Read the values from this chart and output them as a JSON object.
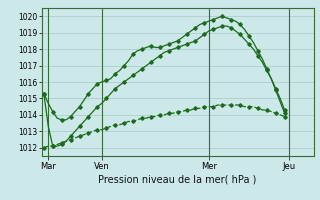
{
  "xlabel": "Pression niveau de la mer( hPa )",
  "bg_color": "#cce8e8",
  "plot_bg_color": "#cce8e8",
  "grid_color": "#aac8c8",
  "line_color": "#1a6b1a",
  "ylim": [
    1011.5,
    1020.5
  ],
  "xlim": [
    -0.5,
    60.5
  ],
  "yticks": [
    1012,
    1013,
    1014,
    1015,
    1016,
    1017,
    1018,
    1019,
    1020
  ],
  "xtick_labels": [
    "Mar",
    "Ven",
    "Mer",
    "Jeu"
  ],
  "xtick_positions": [
    1,
    13,
    37,
    55
  ],
  "vline_positions": [
    1,
    13,
    37,
    55
  ],
  "series1": [
    1015.3,
    1014.7,
    1014.2,
    1013.8,
    1013.7,
    1013.7,
    1013.9,
    1014.2,
    1014.5,
    1014.9,
    1015.3,
    1015.6,
    1015.9,
    1016.0,
    1016.1,
    1016.2,
    1016.5,
    1016.7,
    1017.0,
    1017.3,
    1017.7,
    1017.9,
    1018.0,
    1018.1,
    1018.2,
    1018.1,
    1018.1,
    1018.2,
    1018.3,
    1018.4,
    1018.5,
    1018.7,
    1018.9,
    1019.1,
    1019.3,
    1019.5,
    1019.6,
    1019.7,
    1019.8,
    1019.9,
    1020.0,
    1019.9,
    1019.8,
    1019.7,
    1019.5,
    1019.2,
    1018.8,
    1018.4,
    1017.9,
    1017.4,
    1016.8,
    1016.2,
    1015.5,
    1014.8,
    1014.1
  ],
  "series2": [
    1015.3,
    1013.3,
    1012.1,
    1012.1,
    1012.2,
    1012.4,
    1012.7,
    1013.0,
    1013.3,
    1013.6,
    1013.9,
    1014.2,
    1014.5,
    1014.7,
    1015.0,
    1015.3,
    1015.6,
    1015.8,
    1016.0,
    1016.2,
    1016.4,
    1016.6,
    1016.8,
    1017.0,
    1017.2,
    1017.4,
    1017.6,
    1017.8,
    1017.9,
    1018.0,
    1018.1,
    1018.2,
    1018.3,
    1018.4,
    1018.5,
    1018.7,
    1018.9,
    1019.1,
    1019.2,
    1019.3,
    1019.4,
    1019.4,
    1019.3,
    1019.1,
    1018.9,
    1018.6,
    1018.3,
    1018.0,
    1017.6,
    1017.2,
    1016.7,
    1016.2,
    1015.6,
    1015.0,
    1014.3
  ],
  "series3": [
    1012.0,
    1012.1,
    1012.1,
    1012.2,
    1012.3,
    1012.4,
    1012.5,
    1012.6,
    1012.7,
    1012.8,
    1012.9,
    1013.0,
    1013.1,
    1013.1,
    1013.2,
    1013.3,
    1013.4,
    1013.4,
    1013.5,
    1013.6,
    1013.6,
    1013.7,
    1013.8,
    1013.8,
    1013.9,
    1013.9,
    1014.0,
    1014.0,
    1014.1,
    1014.1,
    1014.2,
    1014.2,
    1014.3,
    1014.3,
    1014.4,
    1014.4,
    1014.5,
    1014.5,
    1014.5,
    1014.6,
    1014.6,
    1014.6,
    1014.6,
    1014.6,
    1014.6,
    1014.5,
    1014.5,
    1014.5,
    1014.4,
    1014.3,
    1014.3,
    1014.2,
    1014.1,
    1014.0,
    1013.9
  ],
  "marker": "D",
  "marker_size": 1.8,
  "linewidth": 0.9,
  "marker_every": 2
}
